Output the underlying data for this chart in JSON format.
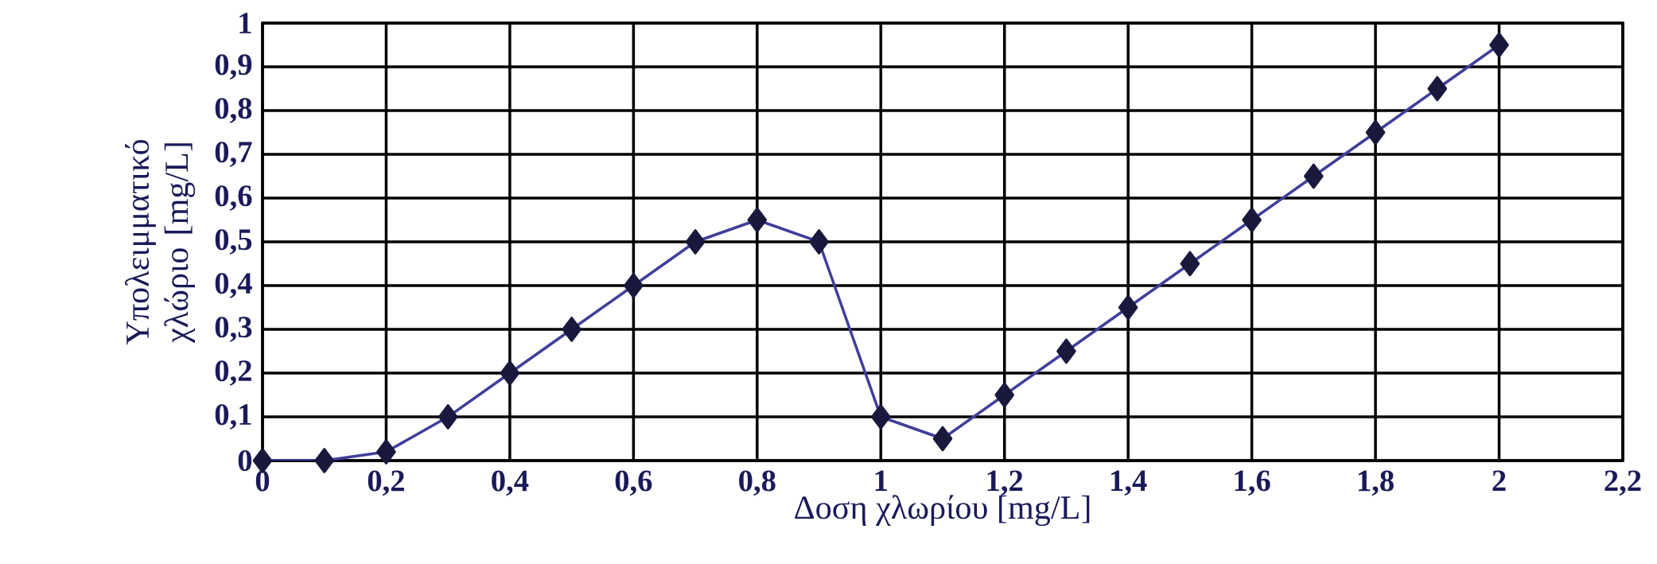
{
  "chart_data": {
    "type": "line",
    "xlabel": "Δοση χλωρίου [mg/L]",
    "ylabel": "Υπολειμματικό χλώριο [mg/L]",
    "x": [
      0,
      0.1,
      0.2,
      0.3,
      0.4,
      0.5,
      0.6,
      0.7,
      0.8,
      0.9,
      1.0,
      1.1,
      1.2,
      1.3,
      1.4,
      1.5,
      1.6,
      1.7,
      1.8,
      1.9,
      2.0
    ],
    "series": [
      {
        "color": "#3f3f9a",
        "values": [
          0,
          0,
          0.02,
          0.1,
          0.2,
          0.3,
          0.4,
          0.5,
          0.55,
          0.5,
          0.1,
          0.05,
          0.15,
          0.25,
          0.35,
          0.45,
          0.55,
          0.65,
          0.75,
          0.85,
          0.95
        ]
      }
    ],
    "marker": "diamond",
    "line_style": "solid",
    "grid": true,
    "xlim": [
      0,
      2.2
    ],
    "ylim": [
      0,
      1
    ],
    "xticks": [
      0,
      {
        "value": 0.2,
        "label": "0,2"
      },
      {
        "value": 0.4,
        "label": "0,4"
      },
      {
        "value": 0.6,
        "label": "0,6"
      },
      {
        "value": 0.8,
        "label": "0,8"
      },
      1,
      {
        "value": 1.2,
        "label": "1,2"
      },
      {
        "value": 1.4,
        "label": "1,4"
      },
      {
        "value": 1.6,
        "label": "1,6"
      },
      {
        "value": 1.8,
        "label": "1,8"
      },
      2,
      {
        "value": 2.2,
        "label": "2,2"
      }
    ],
    "yticks": [
      0,
      {
        "value": 0.1,
        "label": "0,1"
      },
      {
        "value": 0.2,
        "label": "0,2"
      },
      {
        "value": 0.3,
        "label": "0,3"
      },
      {
        "value": 0.4,
        "label": "0,4"
      },
      {
        "value": 0.5,
        "label": "0,5"
      },
      {
        "value": 0.6,
        "label": "0,6"
      },
      {
        "value": 0.7,
        "label": "0,7"
      },
      {
        "value": 0.8,
        "label": "0,8"
      },
      {
        "value": 0.9,
        "label": "0,9"
      },
      1
    ]
  }
}
